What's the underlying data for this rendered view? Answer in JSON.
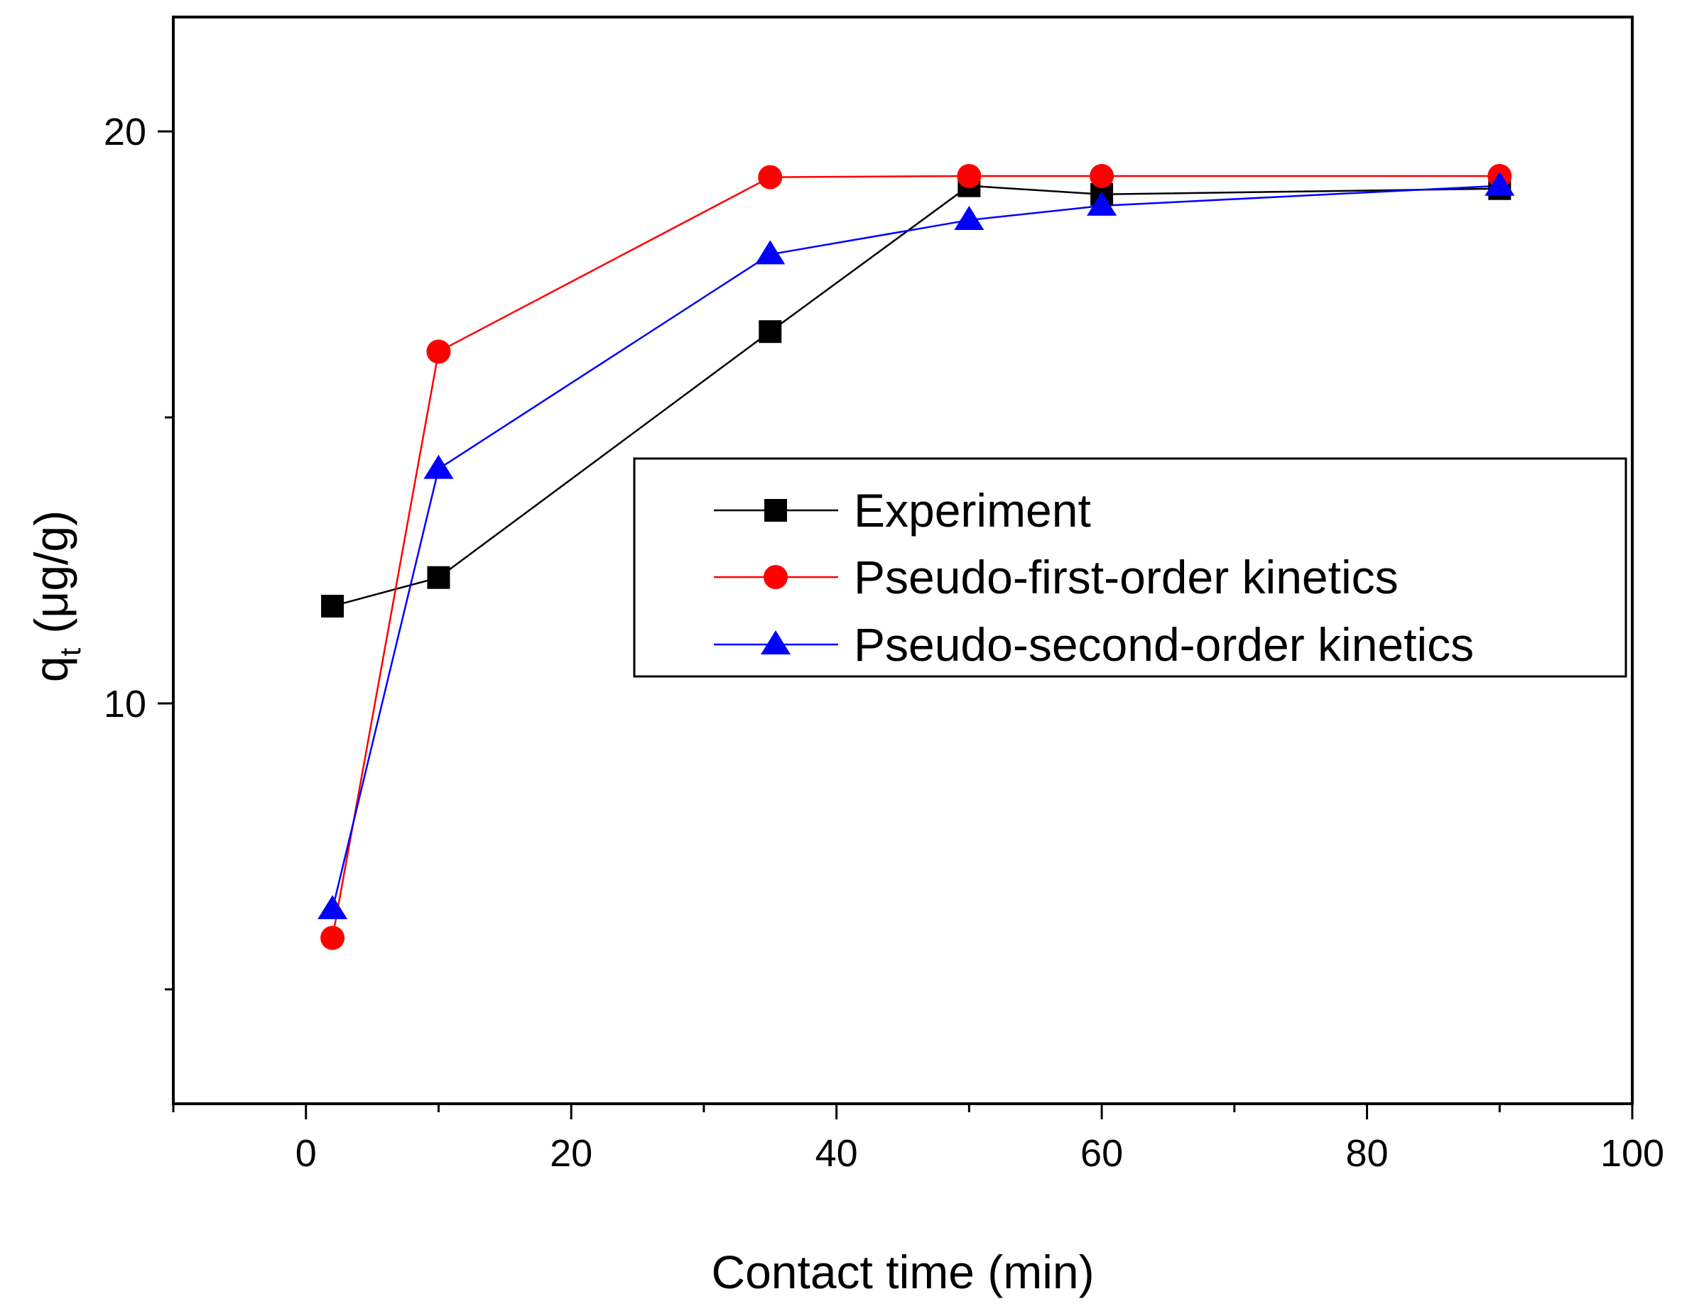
{
  "chart_data": {
    "type": "line",
    "title": "",
    "xlabel": "Contact time (min)",
    "ylabel_main": "q",
    "ylabel_sub": "t",
    "ylabel_unit": "(μg/g)",
    "xlim": [
      -10,
      100
    ],
    "ylim": [
      3,
      22
    ],
    "x_ticks": [
      0,
      20,
      40,
      60,
      80,
      100
    ],
    "x_tick_labels": [
      "0",
      "20",
      "40",
      "60",
      "80",
      "100"
    ],
    "x_minor_ticks": [
      -10,
      10,
      30,
      50,
      70,
      90
    ],
    "y_ticks": [
      10,
      20
    ],
    "y_tick_labels": [
      "10",
      "20"
    ],
    "y_minor_ticks": [
      5,
      15
    ],
    "grid": false,
    "legend_position": "center-right",
    "series": [
      {
        "name": "Experiment",
        "color": "#000000",
        "marker": "square",
        "x": [
          2,
          10,
          35,
          50,
          60,
          90
        ],
        "values": [
          11.7,
          12.2,
          16.5,
          19.05,
          18.9,
          19.0
        ]
      },
      {
        "name": "Pseudo-first-order kinetics",
        "color": "#ff0000",
        "marker": "circle",
        "x": [
          2,
          10,
          35,
          50,
          60,
          90
        ],
        "values": [
          5.9,
          16.15,
          19.2,
          19.22,
          19.22,
          19.22
        ]
      },
      {
        "name": "Pseudo-second-order kinetics",
        "color": "#0000ff",
        "marker": "triangle",
        "x": [
          2,
          10,
          35,
          50,
          60,
          90
        ],
        "values": [
          6.4,
          14.1,
          17.85,
          18.45,
          18.7,
          19.05
        ]
      }
    ]
  }
}
